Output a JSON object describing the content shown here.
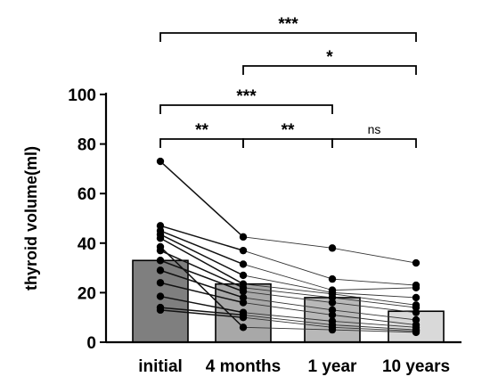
{
  "chart_data": {
    "type": "bar",
    "ylabel": "thyroid volume(ml)",
    "ylim": [
      0,
      100
    ],
    "yticks": [
      "0",
      "20",
      "40",
      "60",
      "80",
      "100"
    ],
    "categories": [
      "initial",
      "4 months",
      "1 year",
      "10 years"
    ],
    "bar_values": [
      33,
      23.5,
      18,
      12.5
    ],
    "bar_colors": [
      "#7f7f7f",
      "#a8a8a8",
      "#b8b8b8",
      "#d9d9d9"
    ],
    "subjects": [
      [
        73,
        42.5,
        38,
        32
      ],
      [
        47,
        37,
        25.5,
        23
      ],
      [
        45,
        31.5,
        21,
        22
      ],
      [
        43.5,
        27,
        20,
        18
      ],
      [
        42,
        23.5,
        19.5,
        15
      ],
      [
        37,
        22,
        18,
        14
      ],
      [
        33,
        20.5,
        16,
        12
      ],
      [
        29,
        18,
        13,
        9
      ],
      [
        24,
        16,
        11,
        7
      ],
      [
        18.5,
        12,
        8.5,
        6
      ],
      [
        14,
        11,
        7,
        5
      ],
      [
        13,
        10,
        6,
        4.5
      ],
      [
        38.5,
        6,
        5,
        4
      ]
    ],
    "significance": [
      {
        "from": 0,
        "to": 3,
        "label": "***"
      },
      {
        "from": 1,
        "to": 3,
        "label": "*"
      },
      {
        "from": 0,
        "to": 2,
        "label": "***"
      },
      {
        "from": 0,
        "to": 1,
        "label": "**"
      },
      {
        "from": 1,
        "to": 2,
        "label": "**"
      },
      {
        "from": 2,
        "to": 3,
        "label": "ns"
      }
    ]
  }
}
